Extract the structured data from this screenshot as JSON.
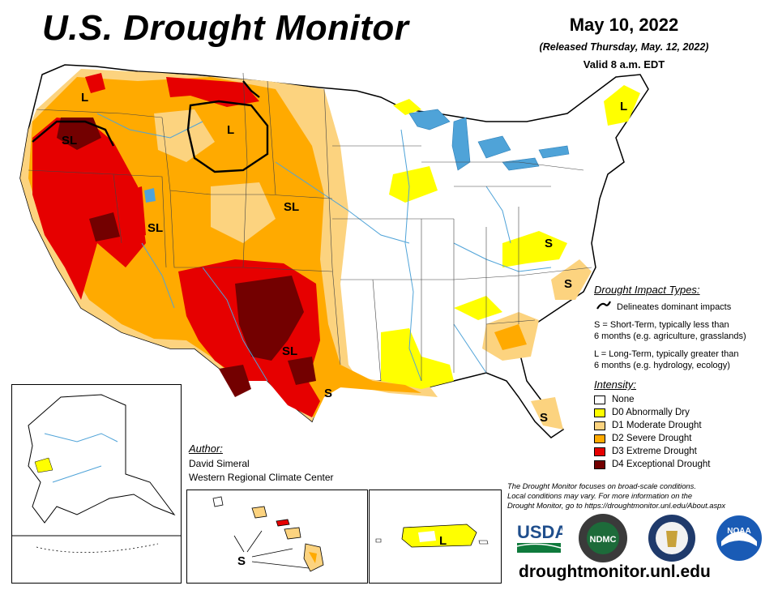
{
  "header": {
    "title": "U.S. Drought Monitor",
    "date": "May 10, 2022",
    "released": "(Released Thursday, May. 12, 2022)",
    "valid": "Valid 8 a.m. EDT"
  },
  "impact_types": {
    "heading": "Drought Impact Types:",
    "delineates": "Delineates dominant impacts",
    "short_term_line1": "S = Short-Term, typically less than",
    "short_term_line2": "6 months (e.g. agriculture, grasslands)",
    "long_term_line1": "L = Long-Term, typically greater than",
    "long_term_line2": "6 months (e.g. hydrology, ecology)"
  },
  "intensity": {
    "heading": "Intensity:",
    "levels": [
      {
        "label": "None",
        "color": "#ffffff"
      },
      {
        "label": "D0 Abnormally Dry",
        "color": "#ffff00"
      },
      {
        "label": "D1 Moderate Drought",
        "color": "#fcd37f"
      },
      {
        "label": "D2 Severe Drought",
        "color": "#ffaa00"
      },
      {
        "label": "D3 Extreme Drought",
        "color": "#e60000"
      },
      {
        "label": "D4 Exceptional Drought",
        "color": "#730000"
      }
    ]
  },
  "author": {
    "heading": "Author:",
    "name": "David Simeral",
    "org": "Western Regional Climate Center"
  },
  "note": {
    "line1": "The Drought Monitor focuses on broad-scale conditions.",
    "line2": "Local conditions may vary. For more information on the",
    "line3": "Drought Monitor, go to https://droughtmonitor.unl.edu/About.aspx"
  },
  "logos": {
    "usda": "USDA",
    "ndmc": "NDMC",
    "noaa": "NOAA"
  },
  "website": "droughtmonitor.unl.edu",
  "map_labels": {
    "sl_oregon": "SL",
    "l_washington": "L",
    "l_montana": "L",
    "sl_nebraska": "SL",
    "sl_utah": "SL",
    "sl_texas": "SL",
    "s_texas": "S",
    "s_virginia": "S",
    "s_carolina": "S",
    "s_florida": "S",
    "l_maine": "L",
    "s_hawaii": "S",
    "l_puerto_rico": "L"
  },
  "colors": {
    "none": "#ffffff",
    "d0": "#ffff00",
    "d1": "#fcd37f",
    "d2": "#ffaa00",
    "d3": "#e60000",
    "d4": "#730000",
    "water": "#4fa3d8"
  }
}
